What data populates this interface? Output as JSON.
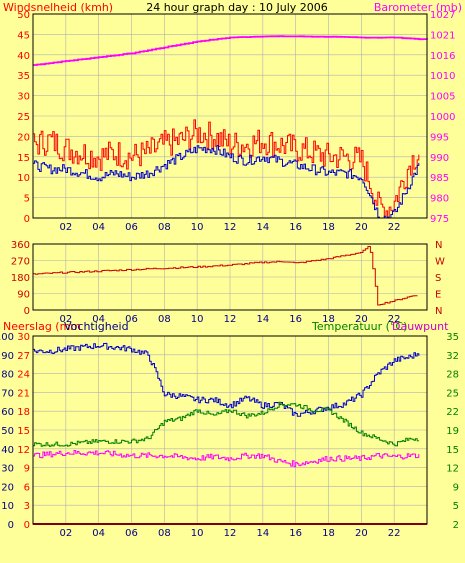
{
  "chart_data": [
    {
      "type": "line",
      "title": "24 hour graph day : 10 July 2006",
      "left_axis_label": "Windsnelheid (kmh)",
      "right_axis_label": "Barometer (mb)",
      "x_ticks": [
        "02",
        "04",
        "06",
        "08",
        "10",
        "12",
        "14",
        "16",
        "18",
        "20",
        "22"
      ],
      "ylim_left": [
        0,
        50
      ],
      "ylim_right": [
        975,
        1027
      ],
      "y_ticks_left": [
        "0",
        "5",
        "10",
        "15",
        "20",
        "25",
        "30",
        "35",
        "40",
        "45",
        "50"
      ],
      "y_ticks_right": [
        "975",
        "980",
        "985",
        "990",
        "995",
        "1000",
        "1005",
        "1010",
        "1016",
        "1021",
        "1027"
      ],
      "grid": true,
      "series": [
        {
          "axis": "right",
          "color": "#ff00ff",
          "x": [
            0,
            2,
            4,
            6,
            8,
            10,
            12,
            14,
            16,
            18,
            20,
            22,
            24
          ],
          "values": [
            1014,
            1015,
            1016,
            1017,
            1018.5,
            1020,
            1021,
            1021.3,
            1021.3,
            1021.2,
            1021,
            1021,
            1020.5
          ]
        },
        {
          "axis": "left",
          "color": "#ff0000",
          "x": [
            0,
            1,
            2,
            3,
            4,
            5,
            6,
            7,
            8,
            9,
            10,
            11,
            12,
            13,
            14,
            15,
            16,
            17,
            18,
            19,
            20,
            20.5,
            21,
            21.5,
            22,
            22.5,
            23,
            23.5
          ],
          "values": [
            18,
            19,
            17,
            16,
            15,
            16,
            15,
            16,
            18,
            19,
            21,
            20,
            18,
            18,
            19,
            18,
            17,
            16,
            15,
            15,
            14,
            9,
            3,
            2,
            4,
            9,
            14,
            16
          ]
        },
        {
          "axis": "left",
          "color": "#0000cc",
          "x": [
            0,
            1,
            2,
            3,
            4,
            5,
            6,
            7,
            8,
            9,
            10,
            11,
            12,
            13,
            14,
            15,
            16,
            17,
            18,
            19,
            20,
            20.5,
            21,
            21.5,
            22,
            22.5,
            23,
            23.5
          ],
          "values": [
            13,
            12,
            12,
            11,
            10,
            11,
            10,
            11,
            13,
            15,
            17,
            17,
            15,
            14,
            15,
            14,
            13,
            12,
            11,
            11,
            10,
            6,
            1,
            0,
            1,
            5,
            9,
            13
          ]
        }
      ]
    },
    {
      "type": "line",
      "x_ticks": [
        "02",
        "04",
        "06",
        "08",
        "10",
        "12",
        "14",
        "16",
        "18",
        "20",
        "22"
      ],
      "ylim": [
        0,
        360
      ],
      "y_ticks_left": [
        "0",
        "90",
        "180",
        "270",
        "360"
      ],
      "y_ticks_right": [
        "N",
        "E",
        "S",
        "W",
        "N"
      ],
      "grid": true,
      "series": [
        {
          "color": "#cc0000",
          "x": [
            0,
            2,
            4,
            6,
            8,
            10,
            12,
            14,
            15.5,
            16,
            18,
            20,
            20.5,
            21,
            22,
            23,
            23.5
          ],
          "values": [
            195,
            205,
            212,
            220,
            228,
            235,
            245,
            260,
            265,
            255,
            280,
            315,
            350,
            30,
            50,
            75,
            85
          ]
        }
      ]
    },
    {
      "type": "line",
      "left_axis_label_1": "Neerslag (mm",
      "left_axis_label_2": "Vochtigheid",
      "right_axis_label_1": "Temperatuur (°C)",
      "right_axis_label_2": "Dauwpunt",
      "x_ticks": [
        "02",
        "04",
        "06",
        "08",
        "10",
        "12",
        "14",
        "16",
        "18",
        "20",
        "22"
      ],
      "ylim_humidity": [
        0,
        100
      ],
      "ylim_rain": [
        0,
        30
      ],
      "ylim_temp": [
        2,
        35
      ],
      "y_ticks_humidity": [
        "0",
        "10",
        "20",
        "30",
        "40",
        "50",
        "60",
        "70",
        "80",
        "90",
        "100"
      ],
      "y_ticks_rain": [
        "0",
        "3",
        "6",
        "9",
        "12",
        "15",
        "18",
        "21",
        "24",
        "27",
        "30"
      ],
      "y_ticks_temp": [
        "2",
        "5",
        "9",
        "12",
        "15",
        "19",
        "22",
        "25",
        "28",
        "32",
        "35"
      ],
      "grid": true,
      "series": [
        {
          "axis": "humidity",
          "color": "#0000cc",
          "x": [
            0,
            1,
            2,
            3,
            4,
            5,
            6,
            7,
            7.5,
            8,
            9,
            10,
            11,
            12,
            13,
            14,
            15,
            16,
            17,
            18,
            19,
            20,
            21,
            22,
            23,
            23.5
          ],
          "values": [
            92,
            92,
            93,
            94,
            95,
            94,
            93,
            90,
            80,
            69,
            68,
            66,
            66,
            63,
            67,
            63,
            64,
            58,
            60,
            62,
            64,
            69,
            80,
            87,
            89,
            91
          ]
        },
        {
          "axis": "temp",
          "color": "#008000",
          "x": [
            0,
            2,
            4,
            6,
            7,
            8,
            9,
            10,
            11,
            12,
            13,
            14,
            15,
            16,
            17,
            18,
            19,
            20,
            21,
            22,
            23,
            23.5
          ],
          "values": [
            16,
            16,
            16.5,
            16.5,
            17,
            20,
            20.5,
            22,
            21,
            22,
            21,
            21.5,
            23,
            23,
            22,
            22,
            20,
            18,
            17,
            16,
            17,
            17
          ]
        },
        {
          "axis": "temp",
          "color": "#ff00ff",
          "x": [
            0,
            2,
            4,
            6,
            8,
            10,
            11,
            12,
            13,
            14,
            15,
            16,
            17,
            18,
            19,
            20,
            21,
            22,
            23,
            23.5
          ],
          "values": [
            14,
            14.5,
            14.5,
            14,
            14,
            13.5,
            13.8,
            13.5,
            14,
            14,
            13,
            12.5,
            13,
            13.5,
            13.5,
            13.5,
            14,
            13.8,
            14,
            14
          ]
        },
        {
          "axis": "rain",
          "color": "#ff0000",
          "x": [
            0,
            24
          ],
          "values": [
            0,
            0
          ]
        }
      ]
    }
  ]
}
